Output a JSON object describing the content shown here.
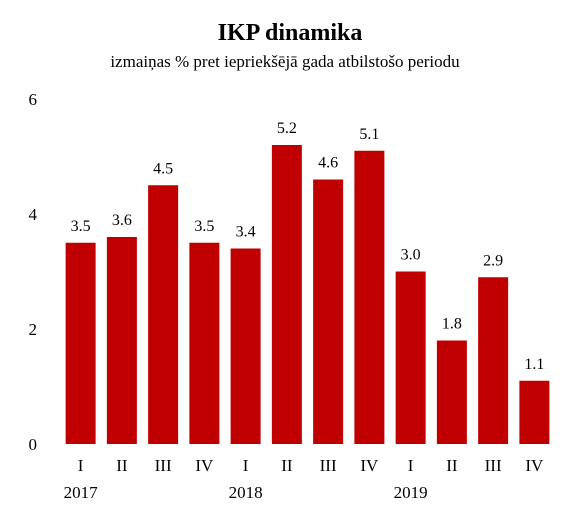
{
  "chart_data": {
    "type": "bar",
    "title": "IKP dinamika",
    "subtitle": "izmaiņas % pret iepriekšējā gada atbilstošo periodu",
    "categories": [
      "I",
      "II",
      "III",
      "IV",
      "I",
      "II",
      "III",
      "IV",
      "I",
      "II",
      "III",
      "IV"
    ],
    "year_labels": [
      {
        "label": "2017",
        "start_index": 0
      },
      {
        "label": "2018",
        "start_index": 4
      },
      {
        "label": "2019",
        "start_index": 8
      }
    ],
    "values": [
      3.5,
      3.6,
      4.5,
      3.5,
      3.4,
      5.2,
      4.6,
      5.1,
      3.0,
      1.8,
      2.9,
      1.1
    ],
    "data_labels": [
      "3.5",
      "3.6",
      "4.5",
      "3.5",
      "3.4",
      "5.2",
      "4.6",
      "5.1",
      "3.0",
      "1.8",
      "2.9",
      "1.1"
    ],
    "ylim": [
      0,
      6
    ],
    "yticks": [
      0,
      2,
      4,
      6
    ],
    "xlabel": "",
    "ylabel": "",
    "grid": false,
    "legend": "none",
    "bar_color": "#c00000"
  }
}
